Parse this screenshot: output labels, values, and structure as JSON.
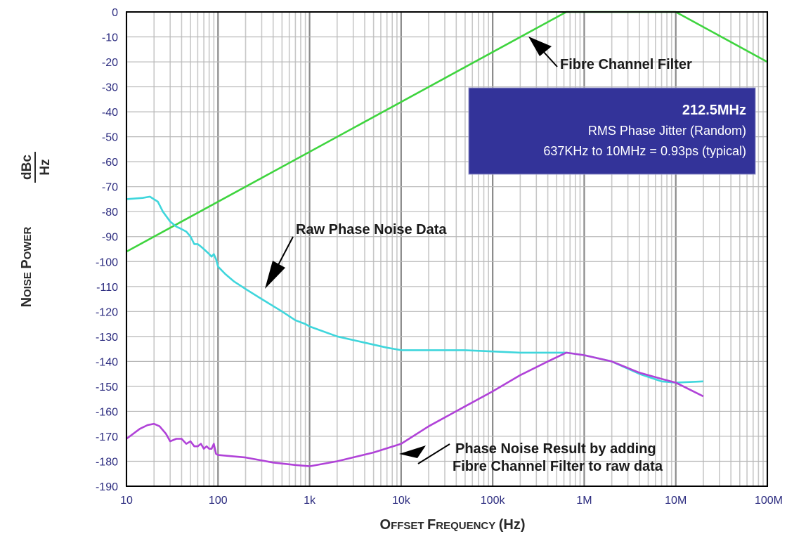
{
  "chart_data": {
    "type": "line",
    "xscale": "log",
    "xlim": [
      10,
      100000000
    ],
    "ylim": [
      -190,
      0
    ],
    "grid": true,
    "xlabel": {
      "first": "O",
      "first_rest": "FFSET",
      "second": "F",
      "second_rest": "REQUENCY",
      "unit": "(Hz)"
    },
    "ylabel": {
      "first": "N",
      "first_rest": "OISE",
      "second": "P",
      "second_rest": "OWER",
      "unit_num": "dBc",
      "unit_den": "Hz"
    },
    "x_ticks": [
      10,
      100,
      1000,
      10000,
      100000,
      1000000,
      10000000,
      100000000
    ],
    "x_tick_labels": [
      "10",
      "100",
      "1k",
      "10k",
      "100k",
      "1M",
      "10M",
      "100M"
    ],
    "y_ticks": [
      0,
      -10,
      -20,
      -30,
      -40,
      -50,
      -60,
      -70,
      -80,
      -90,
      -100,
      -110,
      -120,
      -130,
      -140,
      -150,
      -160,
      -170,
      -180,
      -190
    ],
    "y_tick_labels": [
      "0",
      "-10",
      "-20",
      "-30",
      "-40",
      "-50",
      "-60",
      "-70",
      "-80",
      "-90",
      "-100",
      "-110",
      "-120",
      "-130",
      "-140",
      "-150",
      "-160",
      "-170",
      "-180",
      "-190"
    ],
    "series": [
      {
        "color": "#3ed43e",
        "x": [
          10,
          637000,
          10000000,
          100000000
        ],
        "y": [
          -96,
          0,
          0,
          -20
        ]
      },
      {
        "color": "#3fd6dc",
        "x": [
          10,
          15,
          18,
          22,
          25,
          30,
          35,
          40,
          45,
          50,
          55,
          60,
          65,
          70,
          80,
          85,
          90,
          95,
          100,
          120,
          150,
          200,
          300,
          500,
          700,
          900,
          1000,
          2000,
          4000,
          7000,
          10000,
          20000,
          50000,
          100000,
          200000,
          400000,
          637000,
          1000000,
          2000000,
          4000000,
          7000000,
          10000000,
          20000000
        ],
        "y": [
          -75,
          -74.5,
          -74,
          -76,
          -80,
          -84,
          -86,
          -87,
          -88,
          -90,
          -93,
          -93,
          -94,
          -95,
          -97,
          -98,
          -97,
          -99,
          -102,
          -105,
          -108,
          -111,
          -115,
          -120,
          -123.5,
          -125,
          -126,
          -130,
          -132.5,
          -134.5,
          -135.5,
          -135.5,
          -135.5,
          -136,
          -136.5,
          -136.5,
          -136.5,
          -137.5,
          -140,
          -145,
          -148,
          -148.5,
          -148
        ]
      },
      {
        "color": "#b042d8",
        "x": [
          10,
          14,
          17,
          20,
          23,
          27,
          30,
          35,
          40,
          45,
          50,
          55,
          60,
          65,
          70,
          75,
          80,
          85,
          90,
          95,
          100,
          200,
          400,
          700,
          1000,
          2000,
          5000,
          10000,
          20000,
          50000,
          100000,
          200000,
          400000,
          637000,
          1000000,
          2000000,
          4000000,
          7000000,
          10000000,
          20000000
        ],
        "y": [
          -171,
          -167,
          -165.5,
          -165,
          -166,
          -169,
          -172,
          -171,
          -171,
          -173,
          -172,
          -174,
          -174,
          -173,
          -175,
          -174,
          -175,
          -175,
          -173,
          -177,
          -177.5,
          -178.5,
          -180.5,
          -181.5,
          -182,
          -180,
          -176.5,
          -173,
          -166,
          -158,
          -152,
          -145.5,
          -140,
          -136.5,
          -137.5,
          -140,
          -144.5,
          -147,
          -148.5,
          -154
        ]
      }
    ]
  },
  "annotations": {
    "filter_label": "Fibre Channel Filter",
    "raw_label": "Raw Phase Noise Data",
    "result_label_line1": "Phase Noise Result by adding",
    "result_label_line2": "Fibre Channel Filter to raw data"
  },
  "info_box": {
    "title": "212.5MHz",
    "line1": "RMS Phase Jitter (Random)",
    "line2": "637KHz to 10MHz = 0.93ps (typical)",
    "background": "#333399"
  }
}
